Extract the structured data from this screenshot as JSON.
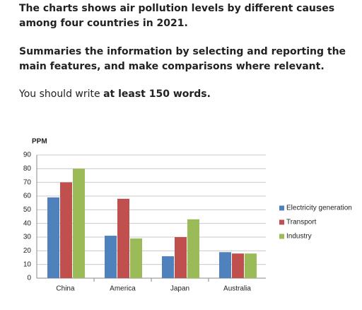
{
  "prompt": {
    "paragraph1": "The charts shows air pollution levels by different causes among four countries in 2021.",
    "paragraph2": "Summaries the information by selecting and reporting the main features, and make comparisons where relevant.",
    "paragraph3": "You should write",
    "paragraph3_bold": "at least 150 words."
  },
  "chart_data": {
    "type": "bar",
    "y_label": "PPM",
    "categories": [
      "China",
      "America",
      "Japan",
      "Australia"
    ],
    "series": [
      {
        "name": "Electricity generation",
        "color": "#4f81bd",
        "values": [
          59,
          31,
          16,
          19
        ]
      },
      {
        "name": "Transport",
        "color": "#c0504d",
        "values": [
          70,
          58,
          30,
          18
        ]
      },
      {
        "name": "Industry",
        "color": "#9bbb59",
        "values": [
          80,
          29,
          43,
          18
        ]
      }
    ],
    "ylim": [
      0,
      90
    ],
    "yticks": [
      0,
      10,
      20,
      30,
      40,
      50,
      60,
      70,
      80,
      90
    ],
    "grid": true,
    "legend": "right"
  }
}
